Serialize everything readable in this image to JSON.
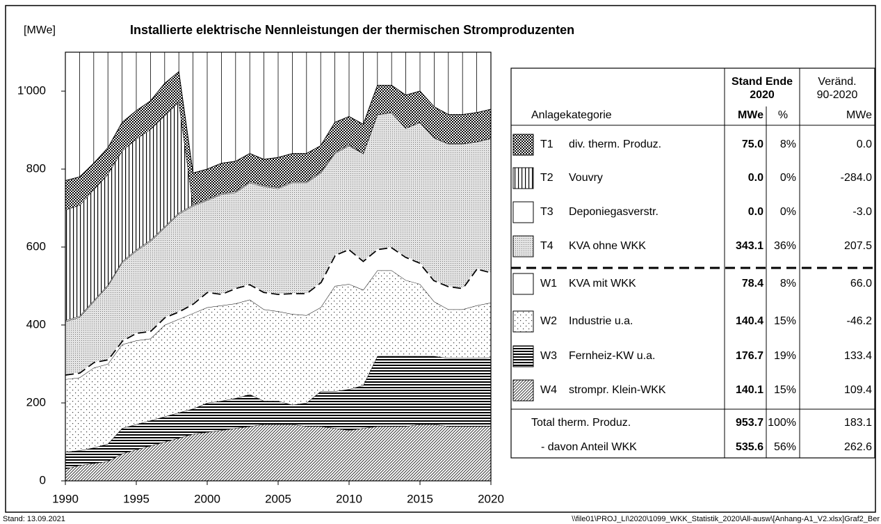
{
  "chart_data": {
    "type": "stacked-area",
    "title": "Installierte elektrische Nennleistungen der thermischen Stromproduzenten",
    "ylabel": "[MWe]",
    "x": [
      1990,
      1991,
      1992,
      1993,
      1994,
      1995,
      1996,
      1997,
      1998,
      1999,
      2000,
      2001,
      2002,
      2003,
      2004,
      2005,
      2006,
      2007,
      2008,
      2009,
      2010,
      2011,
      2012,
      2013,
      2014,
      2015,
      2016,
      2017,
      2018,
      2019,
      2020
    ],
    "xlim": [
      1990,
      2020
    ],
    "xticks": [
      1990,
      1995,
      2000,
      2005,
      2010,
      2015,
      2020
    ],
    "ylim": [
      0,
      1100
    ],
    "yticks": [
      0,
      200,
      400,
      600,
      800,
      {
        "value": 1000,
        "label": "1'000"
      }
    ],
    "xgrid": true,
    "series": [
      {
        "code": "T1",
        "name": "div. therm. Produz.",
        "pattern": "checker",
        "values": [
          75,
          73,
          68,
          68,
          73,
          73,
          73,
          83,
          78,
          82,
          77,
          77,
          77,
          72,
          67,
          77,
          72,
          72,
          67,
          77,
          72,
          75,
          75,
          70,
          85,
          80,
          80,
          75,
          75,
          75,
          75
        ]
      },
      {
        "code": "T2",
        "name": "Vouvry",
        "pattern": "vertical",
        "values": [
          284,
          284,
          284,
          284,
          284,
          284,
          284,
          284,
          284,
          0,
          0,
          0,
          0,
          0,
          0,
          0,
          0,
          0,
          0,
          0,
          0,
          0,
          0,
          0,
          0,
          0,
          0,
          0,
          0,
          0,
          0
        ]
      },
      {
        "code": "T3",
        "name": "Deponiegasverstr.",
        "pattern": "none",
        "values": [
          3,
          3,
          3,
          3,
          3,
          3,
          3,
          3,
          3,
          3,
          3,
          3,
          3,
          3,
          3,
          3,
          3,
          3,
          3,
          3,
          3,
          0,
          0,
          0,
          0,
          0,
          0,
          0,
          0,
          0,
          0
        ]
      },
      {
        "code": "T4",
        "name": "KVA ohne WKK",
        "pattern": "dense-dots",
        "values": [
          135.6,
          142,
          155,
          188,
          200,
          210,
          230,
          230,
          250,
          250,
          235,
          255,
          245,
          260,
          270,
          270,
          283,
          283,
          280,
          260,
          265,
          275,
          345,
          345,
          330,
          360,
          365,
          365,
          370,
          325,
          343.1
        ]
      },
      {
        "code": "W1",
        "name": "KVA mit WKK",
        "pattern": "none",
        "top_line": "dashed",
        "values": [
          12.4,
          13,
          15,
          12,
          10,
          20,
          20,
          20,
          20,
          25,
          40,
          30,
          40,
          40,
          45,
          45,
          54,
          57,
          65,
          80,
          90,
          75,
          55,
          60,
          60,
          55,
          55,
          60,
          55,
          95,
          78.4
        ]
      },
      {
        "code": "W2",
        "name": "Industrie u.a.",
        "pattern": "sparse-dots",
        "values": [
          186.6,
          187,
          205,
          205,
          215,
          215,
          210,
          235,
          240,
          245,
          245,
          245,
          243,
          243,
          235,
          230,
          233,
          225,
          215,
          270,
          270,
          245,
          220,
          220,
          195,
          185,
          140,
          125,
          125,
          135,
          140.4
        ]
      },
      {
        "code": "W3",
        "name": "Fernheiz-KW u.a.",
        "pattern": "horizontal",
        "values": [
          43.3,
          38,
          40,
          45,
          65,
          65,
          65,
          65,
          65,
          65,
          75,
          75,
          77,
          82,
          60,
          60,
          50,
          60,
          90,
          95,
          105,
          110,
          180,
          180,
          180,
          175,
          175,
          175,
          175,
          175,
          176.7
        ]
      },
      {
        "code": "W4",
        "name": "strompr. Klein-WKK",
        "pattern": "diagonal",
        "values": [
          30.7,
          40,
          45,
          50,
          70,
          80,
          90,
          100,
          110,
          120,
          125,
          130,
          135,
          140,
          145,
          145,
          145,
          140,
          140,
          135,
          130,
          135,
          140,
          140,
          140,
          145,
          145,
          140,
          140,
          140,
          140.1
        ]
      }
    ]
  },
  "table": {
    "header": {
      "stand": "Stand Ende",
      "year": "2020",
      "change": "Veränd.",
      "period": "90-2020",
      "category": "Anlagekategorie",
      "mwe": "MWe",
      "pct": "%",
      "change_unit": "MWe"
    },
    "rows": [
      {
        "mwe": "75.0",
        "pct": "8%",
        "change": "0.0"
      },
      {
        "mwe": "0.0",
        "pct": "0%",
        "change": "-284.0"
      },
      {
        "mwe": "0.0",
        "pct": "0%",
        "change": "-3.0"
      },
      {
        "mwe": "343.1",
        "pct": "36%",
        "change": "207.5"
      },
      {
        "mwe": "78.4",
        "pct": "8%",
        "change": "66.0"
      },
      {
        "mwe": "140.4",
        "pct": "15%",
        "change": "-46.2"
      },
      {
        "mwe": "176.7",
        "pct": "19%",
        "change": "133.4"
      },
      {
        "mwe": "140.1",
        "pct": "15%",
        "change": "109.4"
      }
    ],
    "totals": [
      {
        "label": "Total therm. Produz.",
        "mwe": "953.7",
        "pct": "100%",
        "change": "183.1"
      },
      {
        "label": "- davon Anteil WKK",
        "mwe": "535.6",
        "pct": "56%",
        "change": "262.6"
      }
    ]
  },
  "footer": {
    "date": "Stand:  13.09.2021",
    "file": "\\\\file01\\PROJ_LI\\2020\\1099_WKK_Statistik_2020\\All-ausw\\[Anhang-A1_V2.xlsx]Graf2_Ber"
  }
}
